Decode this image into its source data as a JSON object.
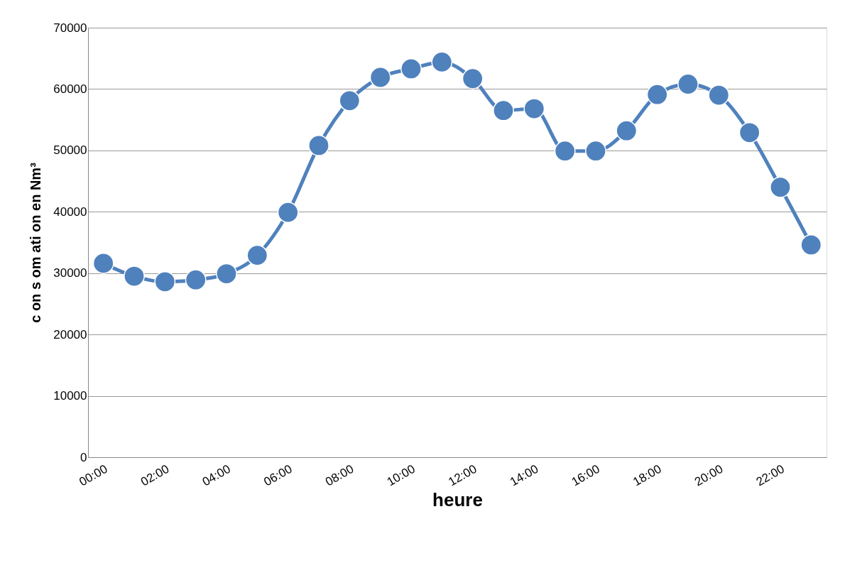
{
  "chart_data": {
    "type": "line",
    "xlabel": "heure",
    "ylabel": "c on s om ati on  en  Nm³",
    "categories": [
      "00:00",
      null,
      "02:00",
      null,
      "04:00",
      null,
      "06:00",
      null,
      "08:00",
      null,
      "10:00",
      null,
      "12:00",
      null,
      "14:00",
      null,
      "16:00",
      null,
      "18:00",
      null,
      "20:00",
      null,
      "22:00",
      null
    ],
    "series": [
      {
        "color": "#4f81bd",
        "values": [
          31600,
          29500,
          28600,
          28900,
          29900,
          32900,
          39900,
          50800,
          58100,
          61900,
          63300,
          64400,
          61700,
          56500,
          56800,
          49900,
          49900,
          53200,
          59100,
          60800,
          59000,
          52900,
          44000,
          34600
        ]
      }
    ],
    "ylim": [
      0,
      70000
    ],
    "yticks": [
      0,
      10000,
      20000,
      30000,
      40000,
      50000,
      60000,
      70000
    ],
    "grid": "y",
    "marker": "circle",
    "line_style": "solid"
  }
}
